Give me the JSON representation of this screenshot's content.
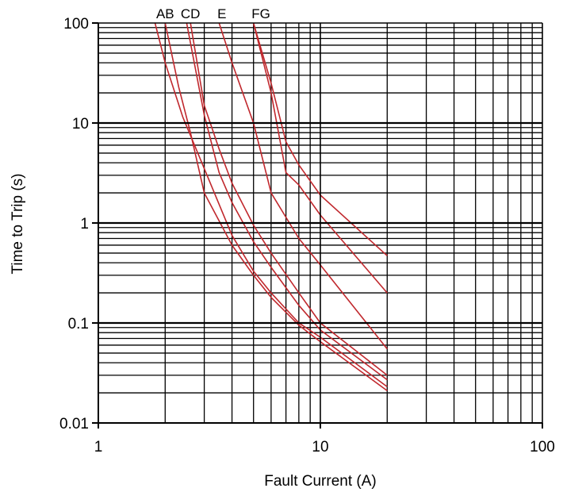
{
  "chart_data": {
    "type": "line",
    "title": "",
    "xlabel": "Fault Current (A)",
    "ylabel": "Time to Trip (s)",
    "x_scale": "log",
    "y_scale": "log",
    "xlim": [
      1,
      100
    ],
    "ylim": [
      0.01,
      100
    ],
    "x_ticks": [
      {
        "value": 1,
        "label": "1"
      },
      {
        "value": 10,
        "label": "10"
      },
      {
        "value": 100,
        "label": "100"
      }
    ],
    "y_ticks": [
      {
        "value": 0.01,
        "label": "0.01"
      },
      {
        "value": 0.1,
        "label": "0.1"
      },
      {
        "value": 1,
        "label": "1"
      },
      {
        "value": 10,
        "label": "10"
      },
      {
        "value": 100,
        "label": "100"
      }
    ],
    "grid": true,
    "line_color": "#c0282d",
    "curve_labels": [
      {
        "text": "AB",
        "x": 2.0
      },
      {
        "text": "CD",
        "x": 2.6
      },
      {
        "text": "E",
        "x": 3.6
      },
      {
        "text": "FG",
        "x": 5.4
      }
    ],
    "series": [
      {
        "x": [
          1.8,
          2.0,
          2.4,
          3.0,
          4.0,
          5.0,
          6.0,
          8.0,
          10.0,
          20.0
        ],
        "y": [
          100,
          40,
          11.5,
          3.5,
          0.75,
          0.33,
          0.2,
          0.1,
          0.072,
          0.023
        ]
      },
      {
        "x": [
          2.0,
          2.3,
          2.6,
          3.0,
          4.0,
          5.0,
          6.0,
          8.0,
          10.0,
          20.0
        ],
        "y": [
          100,
          23,
          8,
          2.0,
          0.6,
          0.3,
          0.18,
          0.095,
          0.065,
          0.021
        ]
      },
      {
        "x": [
          2.5,
          3.0,
          3.5,
          4.0,
          5.0,
          6.0,
          8.0,
          10.0,
          20.0
        ],
        "y": [
          100,
          12,
          3.2,
          1.6,
          0.65,
          0.36,
          0.15,
          0.085,
          0.027
        ]
      },
      {
        "x": [
          2.6,
          3.0,
          3.5,
          4.0,
          5.0,
          6.0,
          8.0,
          10.0,
          20.0
        ],
        "y": [
          100,
          15,
          5.5,
          2.5,
          0.95,
          0.5,
          0.2,
          0.1,
          0.03
        ]
      },
      {
        "x": [
          3.5,
          4.0,
          5.0,
          6.0,
          8.0,
          10.0,
          20.0
        ],
        "y": [
          100,
          40,
          10,
          2.0,
          0.7,
          0.38,
          0.055
        ]
      },
      {
        "x": [
          5.0,
          6.0,
          7.0,
          8.0,
          10.0,
          20.0
        ],
        "y": [
          100,
          20,
          3.2,
          2.4,
          1.2,
          0.2
        ]
      },
      {
        "x": [
          5.0,
          6.0,
          7.0,
          8.0,
          10.0,
          20.0
        ],
        "y": [
          100,
          25,
          6.5,
          3.8,
          1.9,
          0.47
        ]
      }
    ]
  }
}
